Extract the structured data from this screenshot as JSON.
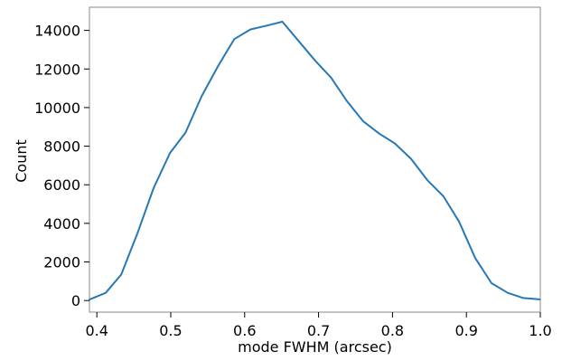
{
  "chart_data": {
    "type": "line",
    "title": "",
    "xlabel": "mode FWHM (arcsec)",
    "ylabel": "Count",
    "xlim": [
      0.39,
      1.0
    ],
    "ylim": [
      -600,
      15200
    ],
    "grid": false,
    "x_ticks": [
      0.4,
      0.5,
      0.6,
      0.7,
      0.8,
      0.9,
      1.0
    ],
    "x_tick_labels": [
      "0.4",
      "0.5",
      "0.6",
      "0.7",
      "0.8",
      "0.9",
      "1.0"
    ],
    "y_ticks": [
      0,
      2000,
      4000,
      6000,
      8000,
      10000,
      12000,
      14000
    ],
    "y_tick_labels": [
      "0",
      "2000",
      "4000",
      "6000",
      "8000",
      "10000",
      "12000",
      "14000"
    ],
    "series": [
      {
        "color": "#2878b5",
        "x": [
          0.39,
          0.412,
          0.433,
          0.455,
          0.477,
          0.499,
          0.52,
          0.542,
          0.564,
          0.586,
          0.608,
          0.63,
          0.651,
          0.673,
          0.695,
          0.717,
          0.738,
          0.76,
          0.782,
          0.803,
          0.825,
          0.847,
          0.869,
          0.89,
          0.912,
          0.934,
          0.956,
          0.977,
          0.999
        ],
        "y": [
          50,
          400,
          1350,
          3500,
          5850,
          7650,
          8700,
          10600,
          12150,
          13550,
          14050,
          14250,
          14450,
          13450,
          12450,
          11550,
          10350,
          9300,
          8650,
          8150,
          7350,
          6250,
          5400,
          4100,
          2200,
          900,
          400,
          130,
          60
        ]
      }
    ]
  }
}
